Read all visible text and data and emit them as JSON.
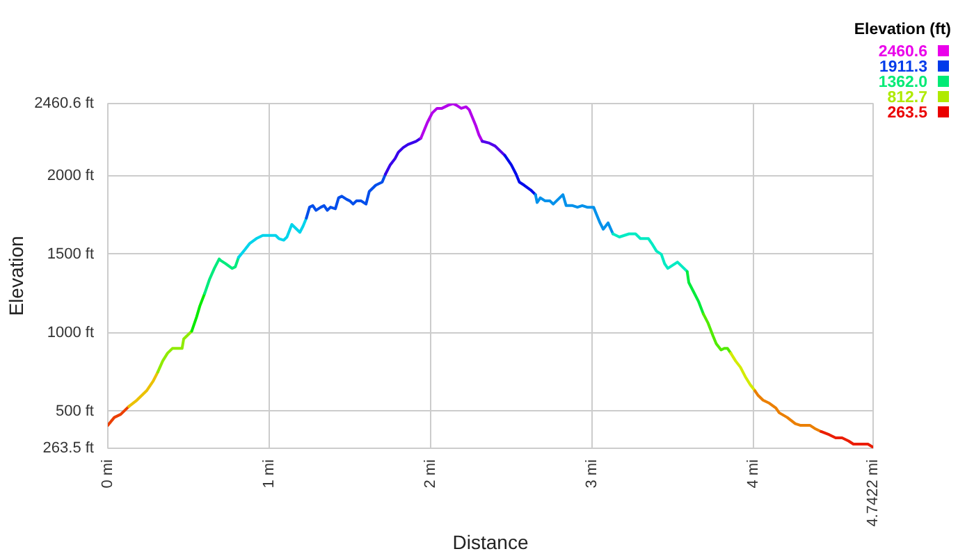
{
  "chart_data": {
    "type": "line",
    "xlabel": "Distance",
    "ylabel": "Elevation",
    "clabel": "Elevation (ft)",
    "series": [
      {
        "color": "#eb3f00",
        "x": [
          0.0,
          0.04,
          0.08,
          0.13
        ],
        "values": [
          410,
          460,
          480,
          530
        ]
      },
      {
        "color": "#ebc100",
        "x": [
          0.13,
          0.18,
          0.21,
          0.24,
          0.28,
          0.31
        ],
        "values": [
          530,
          570,
          600,
          630,
          690,
          750
        ]
      },
      {
        "color": "#8feb00",
        "x": [
          0.31,
          0.34,
          0.37,
          0.4,
          0.43,
          0.46,
          0.47,
          0.52
        ],
        "values": [
          750,
          820,
          870,
          900,
          900,
          900,
          960,
          1010
        ]
      },
      {
        "color": "#09eb00",
        "x": [
          0.52,
          0.55,
          0.57,
          0.6
        ],
        "values": [
          1010,
          1100,
          1170,
          1250
        ]
      },
      {
        "color": "#00eb7d",
        "x": [
          0.6,
          0.63,
          0.66,
          0.69,
          0.7,
          0.73,
          0.77,
          0.79,
          0.81
        ],
        "values": [
          1250,
          1340,
          1410,
          1470,
          1460,
          1440,
          1410,
          1420,
          1480
        ]
      },
      {
        "color": "#00d4eb",
        "x": [
          0.81,
          0.85,
          0.88,
          0.92,
          0.96,
          1.01,
          1.04,
          1.06,
          1.09,
          1.11,
          1.14,
          1.16,
          1.19,
          1.21,
          1.23
        ],
        "values": [
          1480,
          1530,
          1570,
          1600,
          1620,
          1620,
          1620,
          1600,
          1590,
          1610,
          1690,
          1670,
          1640,
          1680,
          1730
        ]
      },
      {
        "color": "#004eeb",
        "x": [
          1.23,
          1.25,
          1.27,
          1.29,
          1.32,
          1.34,
          1.36,
          1.38,
          1.41,
          1.43,
          1.45,
          1.48,
          1.5,
          1.52,
          1.54,
          1.57,
          1.6,
          1.62,
          1.66,
          1.7,
          1.72
        ],
        "values": [
          1730,
          1800,
          1810,
          1780,
          1800,
          1810,
          1780,
          1800,
          1790,
          1860,
          1870,
          1850,
          1840,
          1820,
          1840,
          1840,
          1820,
          1900,
          1940,
          1960,
          2010
        ]
      },
      {
        "color": "#3800eb",
        "x": [
          1.72,
          1.75,
          1.78,
          1.8,
          1.83,
          1.86,
          1.91,
          1.94
        ],
        "values": [
          2010,
          2070,
          2110,
          2150,
          2180,
          2200,
          2220,
          2240
        ]
      },
      {
        "color": "#b300eb",
        "x": [
          1.94,
          1.96,
          1.98,
          2.01,
          2.04,
          2.07,
          2.11,
          2.14,
          2.16,
          2.19,
          2.22,
          2.24,
          2.26,
          2.28,
          2.3,
          2.32
        ],
        "values": [
          2240,
          2290,
          2340,
          2400,
          2430,
          2430,
          2450,
          2460,
          2450,
          2430,
          2440,
          2420,
          2370,
          2320,
          2260,
          2220
        ]
      },
      {
        "color": "#5100eb",
        "x": [
          2.32,
          2.36,
          2.4,
          2.43,
          2.46
        ],
        "values": [
          2220,
          2210,
          2190,
          2160,
          2130
        ]
      },
      {
        "color": "#000beb",
        "x": [
          2.46,
          2.5,
          2.53,
          2.55,
          2.58,
          2.62,
          2.65
        ],
        "values": [
          2130,
          2070,
          2010,
          1960,
          1940,
          1910,
          1880
        ]
      },
      {
        "color": "#0091eb",
        "x": [
          2.65,
          2.66,
          2.68,
          2.71,
          2.74,
          2.76,
          2.8,
          2.82,
          2.84,
          2.88,
          2.91,
          2.94,
          2.97,
          3.01,
          3.03,
          3.05,
          3.07,
          3.1,
          3.13
        ],
        "values": [
          1880,
          1830,
          1860,
          1840,
          1840,
          1820,
          1860,
          1880,
          1810,
          1810,
          1800,
          1810,
          1800,
          1800,
          1750,
          1700,
          1660,
          1700,
          1630
        ]
      },
      {
        "color": "#00ebc3",
        "x": [
          3.13,
          3.17,
          3.2,
          3.23,
          3.27,
          3.3,
          3.35,
          3.37,
          3.4,
          3.43,
          3.45,
          3.47,
          3.5,
          3.53,
          3.56,
          3.59
        ],
        "values": [
          1630,
          1610,
          1620,
          1630,
          1630,
          1600,
          1600,
          1570,
          1520,
          1500,
          1440,
          1410,
          1430,
          1450,
          1420,
          1390
        ]
      },
      {
        "color": "#00eb3b",
        "x": [
          3.59,
          3.6,
          3.63,
          3.66,
          3.69
        ],
        "values": [
          1390,
          1320,
          1260,
          1200,
          1120
        ]
      },
      {
        "color": "#51eb00",
        "x": [
          3.69,
          3.72,
          3.75,
          3.77,
          3.8,
          3.82,
          3.84,
          3.86
        ],
        "values": [
          1120,
          1060,
          980,
          930,
          890,
          900,
          900,
          870
        ]
      },
      {
        "color": "#d3eb00",
        "x": [
          3.86,
          3.89,
          3.92,
          3.95,
          3.98,
          4.01
        ],
        "values": [
          870,
          820,
          780,
          720,
          670,
          630
        ]
      },
      {
        "color": "#eb7f00",
        "x": [
          4.01,
          4.03,
          4.06,
          4.1,
          4.14,
          4.16,
          4.21,
          4.26,
          4.29,
          4.35,
          4.38,
          4.42
        ],
        "values": [
          630,
          600,
          570,
          550,
          520,
          490,
          460,
          420,
          410,
          410,
          390,
          370
        ]
      },
      {
        "color": "#eb1d00",
        "x": [
          4.42,
          4.47,
          4.51,
          4.55,
          4.59,
          4.62,
          4.67,
          4.71,
          4.7422
        ],
        "values": [
          370,
          350,
          330,
          330,
          310,
          290,
          290,
          290,
          270
        ]
      }
    ],
    "xlim": [
      0,
      4.7422
    ],
    "xticks": [
      {
        "value": 0,
        "label": "0 mi"
      },
      {
        "value": 1,
        "label": "1 mi"
      },
      {
        "value": 2,
        "label": "2 mi"
      },
      {
        "value": 3,
        "label": "3 mi"
      },
      {
        "value": 4,
        "label": "4 mi"
      },
      {
        "value": 4.7422,
        "label": "4.7422 mi"
      }
    ],
    "ylim": [
      263.5,
      2460.6
    ],
    "yticks": [
      {
        "value": 263.5,
        "label": "263.5 ft"
      },
      {
        "value": 500,
        "label": "500 ft"
      },
      {
        "value": 1000,
        "label": "1000 ft"
      },
      {
        "value": 1500,
        "label": "1500 ft"
      },
      {
        "value": 2000,
        "label": "2000 ft"
      },
      {
        "value": 2460.6,
        "label": "2460.6 ft"
      }
    ],
    "clim": [
      263.5,
      2460.6
    ],
    "cticks": [
      2460.6,
      1911.3,
      {
        "value": 1362.0,
        "label": "1362.0"
      },
      812.7,
      263.5
    ],
    "grid": true
  }
}
